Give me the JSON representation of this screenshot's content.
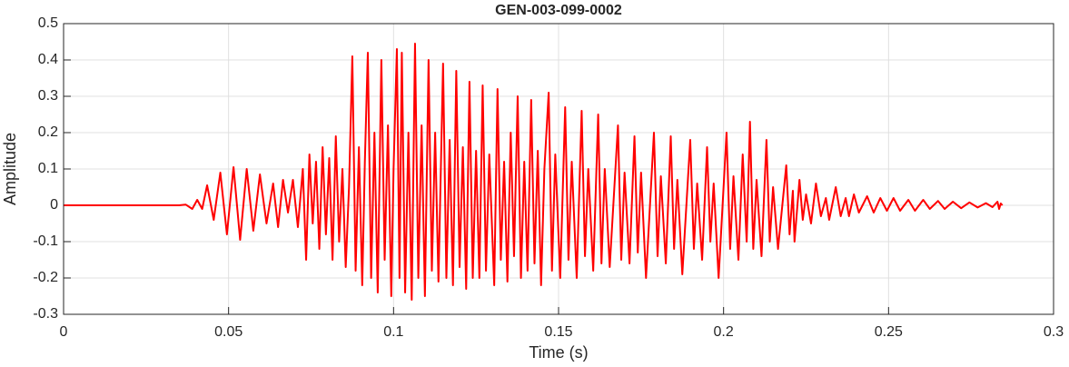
{
  "chart_data": {
    "type": "line",
    "title": "GEN-003-099-0002",
    "xlabel": "Time (s)",
    "ylabel": "Amplitude",
    "grid": true,
    "xlim": [
      0,
      0.3
    ],
    "ylim": [
      -0.3,
      0.5
    ],
    "xticks": [
      0,
      0.05,
      0.1,
      0.15,
      0.2,
      0.25,
      0.3
    ],
    "yticks": [
      -0.3,
      -0.2,
      -0.1,
      0,
      0.1,
      0.2,
      0.3,
      0.4,
      0.5
    ],
    "x": [
      0,
      0.035,
      0.037,
      0.039,
      0.0405,
      0.042,
      0.0435,
      0.0455,
      0.0475,
      0.0495,
      0.0515,
      0.0535,
      0.0555,
      0.0575,
      0.0595,
      0.0615,
      0.0635,
      0.065,
      0.0665,
      0.068,
      0.0695,
      0.071,
      0.0725,
      0.0735,
      0.0745,
      0.0755,
      0.0765,
      0.0775,
      0.0785,
      0.0795,
      0.0805,
      0.0815,
      0.0825,
      0.0835,
      0.0845,
      0.0855,
      0.0865,
      0.0875,
      0.0885,
      0.0895,
      0.0905,
      0.0913,
      0.0922,
      0.0932,
      0.0942,
      0.0952,
      0.0963,
      0.0973,
      0.0983,
      0.0993,
      0.1,
      0.101,
      0.1018,
      0.1025,
      0.1035,
      0.1045,
      0.1055,
      0.1065,
      0.1075,
      0.1085,
      0.1095,
      0.1106,
      0.1116,
      0.1126,
      0.1136,
      0.115,
      0.116,
      0.117,
      0.118,
      0.119,
      0.12,
      0.121,
      0.122,
      0.123,
      0.124,
      0.125,
      0.126,
      0.127,
      0.128,
      0.129,
      0.1305,
      0.1315,
      0.1325,
      0.1335,
      0.1345,
      0.1355,
      0.1365,
      0.1376,
      0.1386,
      0.1396,
      0.1406,
      0.1417,
      0.1427,
      0.1437,
      0.1447,
      0.1457,
      0.147,
      0.148,
      0.149,
      0.1505,
      0.152,
      0.153,
      0.154,
      0.1555,
      0.157,
      0.158,
      0.159,
      0.1605,
      0.162,
      0.163,
      0.164,
      0.1655,
      0.168,
      0.169,
      0.17,
      0.1715,
      0.173,
      0.174,
      0.175,
      0.1765,
      0.1789,
      0.18,
      0.181,
      0.1825,
      0.184,
      0.185,
      0.186,
      0.1875,
      0.1899,
      0.191,
      0.192,
      0.1935,
      0.195,
      0.196,
      0.197,
      0.1985,
      0.2009,
      0.202,
      0.203,
      0.2045,
      0.2058,
      0.207,
      0.208,
      0.209,
      0.21,
      0.2115,
      0.213,
      0.214,
      0.215,
      0.2165,
      0.219,
      0.22,
      0.221,
      0.2215,
      0.223,
      0.224,
      0.225,
      0.2265,
      0.228,
      0.2295,
      0.231,
      0.232,
      0.234,
      0.2355,
      0.237,
      0.238,
      0.2395,
      0.241,
      0.2435,
      0.2455,
      0.2475,
      0.2495,
      0.2515,
      0.2535,
      0.256,
      0.258,
      0.2605,
      0.2625,
      0.265,
      0.267,
      0.2695,
      0.272,
      0.2745,
      0.277,
      0.2795,
      0.2815,
      0.283,
      0.2835,
      0.284,
      0.2845
    ],
    "series": [
      {
        "color": "#ff0000",
        "values": [
          0,
          0,
          0.002,
          -0.01,
          0.015,
          -0.01,
          0.055,
          -0.04,
          0.09,
          -0.08,
          0.105,
          -0.095,
          0.1,
          -0.07,
          0.085,
          -0.05,
          0.06,
          -0.06,
          0.07,
          -0.02,
          0.07,
          -0.06,
          0.1,
          -0.15,
          0.14,
          -0.05,
          0.12,
          -0.12,
          0.16,
          -0.08,
          0.13,
          -0.15,
          0.19,
          -0.1,
          0.1,
          -0.17,
          0.05,
          0.41,
          -0.18,
          0.16,
          -0.22,
          0.12,
          0.42,
          -0.2,
          0.2,
          -0.24,
          0.4,
          -0.15,
          0.22,
          -0.25,
          0.1,
          0.43,
          -0.2,
          0.42,
          -0.24,
          0.2,
          -0.26,
          0.445,
          -0.2,
          0.22,
          -0.25,
          0.4,
          -0.18,
          0.2,
          -0.21,
          0.39,
          -0.2,
          0.18,
          -0.22,
          0.37,
          -0.17,
          0.16,
          -0.23,
          0.34,
          -0.2,
          0.15,
          -0.2,
          0.33,
          -0.18,
          0.14,
          -0.22,
          0.32,
          -0.15,
          0.12,
          -0.21,
          0.2,
          -0.14,
          0.3,
          -0.2,
          0.12,
          -0.18,
          0.29,
          -0.16,
          0.15,
          -0.22,
          0.1,
          0.31,
          -0.18,
          0.14,
          -0.2,
          0.27,
          -0.15,
          0.12,
          -0.2,
          0.26,
          -0.14,
          0.1,
          -0.18,
          0.25,
          -0.16,
          0.1,
          -0.17,
          0.22,
          -0.15,
          0.09,
          -0.16,
          0.19,
          -0.13,
          0.09,
          -0.2,
          0.2,
          -0.14,
          0.08,
          -0.16,
          0.19,
          -0.12,
          0.07,
          -0.19,
          0.18,
          -0.12,
          0.06,
          -0.15,
          0.16,
          -0.1,
          0.06,
          -0.2,
          0.2,
          -0.12,
          0.08,
          -0.15,
          0.14,
          -0.1,
          0.23,
          -0.12,
          0.07,
          -0.14,
          0.18,
          -0.1,
          0.05,
          -0.12,
          0.11,
          -0.08,
          0.04,
          -0.1,
          0.07,
          -0.04,
          0.03,
          -0.05,
          0.06,
          -0.03,
          0.02,
          -0.04,
          0.05,
          -0.03,
          0.02,
          -0.03,
          0.03,
          -0.02,
          0.025,
          -0.02,
          0.02,
          -0.015,
          0.02,
          -0.015,
          0.015,
          -0.015,
          0.015,
          -0.01,
          0.012,
          -0.01,
          0.01,
          -0.008,
          0.008,
          -0.006,
          0.006,
          -0.005,
          0.01,
          -0.01,
          0.005,
          0
        ]
      }
    ]
  }
}
